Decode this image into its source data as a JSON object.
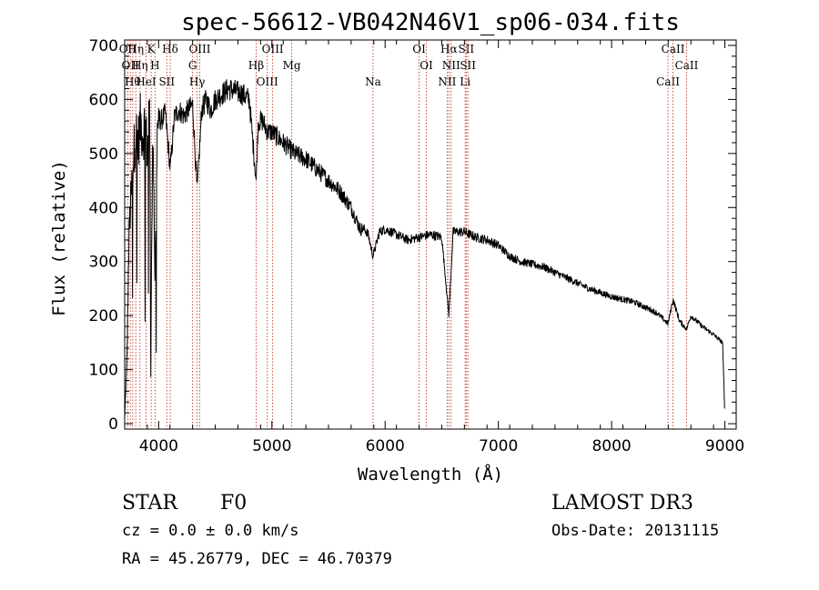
{
  "chart_data": {
    "type": "line",
    "title": "spec-56612-VB042N46V1_sp06-034.fits",
    "xlabel": "Wavelength (Å)",
    "ylabel": "Flux (relative)",
    "xlim": [
      3700,
      9100
    ],
    "ylim": [
      -10,
      710
    ],
    "x_ticks": [
      4000,
      5000,
      6000,
      7000,
      8000,
      9000
    ],
    "y_ticks": [
      0,
      100,
      200,
      300,
      400,
      500,
      600,
      700
    ],
    "series": [
      {
        "name": "flux",
        "x": [
          3700,
          3720,
          3740,
          3760,
          3780,
          3800,
          3820,
          3840,
          3860,
          3880,
          3900,
          3920,
          3934,
          3950,
          3968,
          3990,
          4020,
          4060,
          4102,
          4140,
          4180,
          4220,
          4260,
          4300,
          4340,
          4380,
          4420,
          4460,
          4500,
          4560,
          4620,
          4680,
          4740,
          4800,
          4861,
          4880,
          4920,
          4960,
          5000,
          5100,
          5200,
          5300,
          5400,
          5500,
          5600,
          5700,
          5780,
          5820,
          5850,
          5893,
          5950,
          6000,
          6100,
          6200,
          6300,
          6400,
          6500,
          6563,
          6600,
          6700,
          6800,
          6900,
          7000,
          7100,
          7200,
          7400,
          7600,
          7800,
          8000,
          8200,
          8400,
          8498,
          8542,
          8600,
          8662,
          8700,
          8800,
          8900,
          8980,
          9000
        ],
        "y": [
          10,
          120,
          360,
          430,
          500,
          540,
          520,
          560,
          530,
          560,
          500,
          570,
          220,
          560,
          260,
          570,
          560,
          575,
          470,
          570,
          580,
          570,
          580,
          590,
          430,
          580,
          600,
          580,
          600,
          610,
          620,
          615,
          610,
          600,
          450,
          560,
          560,
          540,
          540,
          520,
          500,
          490,
          470,
          450,
          430,
          400,
          360,
          360,
          350,
          310,
          355,
          360,
          350,
          340,
          345,
          350,
          345,
          200,
          355,
          355,
          345,
          340,
          330,
          310,
          300,
          290,
          270,
          250,
          235,
          225,
          205,
          185,
          230,
          190,
          175,
          200,
          180,
          165,
          150,
          15
        ]
      }
    ],
    "line_markers": [
      {
        "wl": 3727,
        "label": "OII"
      },
      {
        "wl": 3750,
        "label": "OII"
      },
      {
        "wl": 3771,
        "label": "Hθ"
      },
      {
        "wl": 3798,
        "label": "Hη"
      },
      {
        "wl": 3835,
        "label": "Hη"
      },
      {
        "wl": 3889,
        "label": "HeI"
      },
      {
        "wl": 3934,
        "label": "K"
      },
      {
        "wl": 3968,
        "label": "H"
      },
      {
        "wl": 4072,
        "label": "SII"
      },
      {
        "wl": 4102,
        "label": "Hδ"
      },
      {
        "wl": 4300,
        "label": "G"
      },
      {
        "wl": 4340,
        "label": "Hγ"
      },
      {
        "wl": 4363,
        "label": "OIII"
      },
      {
        "wl": 4861,
        "label": "Hβ"
      },
      {
        "wl": 4959,
        "label": "OIII"
      },
      {
        "wl": 5007,
        "label": "OIII"
      },
      {
        "wl": 5175,
        "label": "Mg"
      },
      {
        "wl": 5893,
        "label": "Na"
      },
      {
        "wl": 6300,
        "label": "OI"
      },
      {
        "wl": 6364,
        "label": "OI"
      },
      {
        "wl": 6548,
        "label": "NII"
      },
      {
        "wl": 6563,
        "label": "Hα"
      },
      {
        "wl": 6583,
        "label": "NII"
      },
      {
        "wl": 6707,
        "label": "Li"
      },
      {
        "wl": 6716,
        "label": "SII"
      },
      {
        "wl": 6731,
        "label": "SII"
      },
      {
        "wl": 8498,
        "label": "CaII"
      },
      {
        "wl": 8542,
        "label": "CaII"
      },
      {
        "wl": 8662,
        "label": "CaII"
      }
    ]
  },
  "info": {
    "class": "STAR",
    "subclass": "F0",
    "survey": "LAMOST DR3",
    "cz": "cz = 0.0 ± 0.0 km/s",
    "obs_date": "Obs-Date: 20131115",
    "radec": "RA =  45.26779, DEC =  46.70379"
  }
}
